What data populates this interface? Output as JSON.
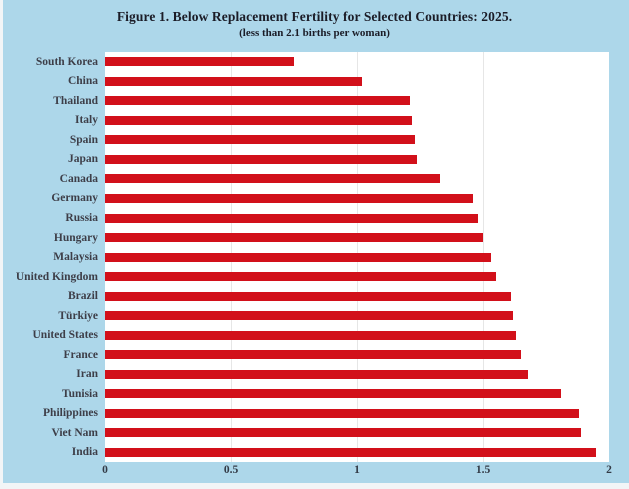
{
  "figure": {
    "title": "Figure 1. Below Replacement Fertility for Selected Countries: 2025.",
    "subtitle": "(less than 2.1 births per woman)"
  },
  "chart_data": {
    "type": "bar",
    "orientation": "horizontal",
    "title": "Figure 1. Below Replacement Fertility for Selected Countries: 2025.",
    "subtitle": "(less than 2.1 births per woman)",
    "xlabel": "",
    "ylabel": "",
    "categories": [
      "South Korea",
      "China",
      "Thailand",
      "Italy",
      "Spain",
      "Japan",
      "Canada",
      "Germany",
      "Russia",
      "Hungary",
      "Malaysia",
      "United Kingdom",
      "Brazil",
      "Türkiye",
      "United States",
      "France",
      "Iran",
      "Tunisia",
      "Philippines",
      "Viet Nam",
      "India"
    ],
    "values": [
      0.75,
      1.02,
      1.21,
      1.22,
      1.23,
      1.24,
      1.33,
      1.46,
      1.48,
      1.5,
      1.53,
      1.55,
      1.61,
      1.62,
      1.63,
      1.65,
      1.68,
      1.81,
      1.88,
      1.89,
      1.95
    ],
    "xlim": [
      0,
      2
    ],
    "x_ticks": [
      0,
      0.5,
      1,
      1.5,
      2
    ],
    "x_tick_labels": [
      "0",
      "0.5",
      "1",
      "1.5",
      "2"
    ],
    "grid_values": [
      0.5,
      1,
      1.5
    ],
    "grid": "vertical",
    "legend": "none",
    "bar_color": "#D2101A",
    "background_color": "#ADD7EA",
    "plot_background": "#FFFFFF",
    "gridline_color": "#E6E6E6"
  }
}
